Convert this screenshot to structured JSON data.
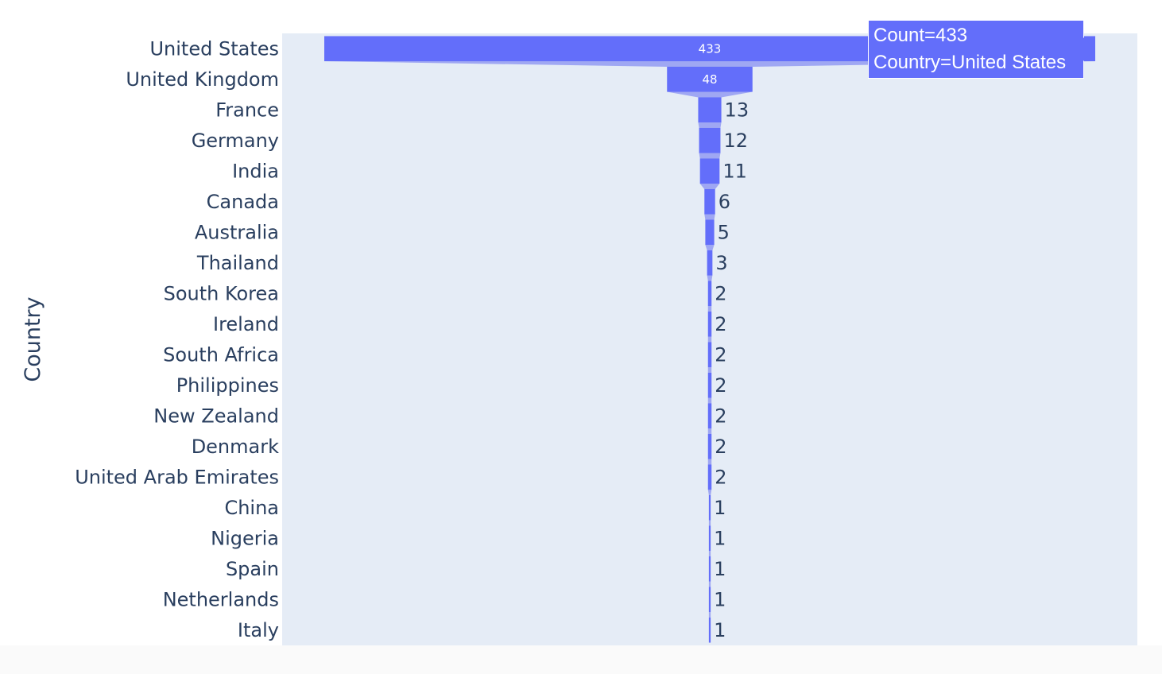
{
  "chart_data": {
    "type": "funnel",
    "ylabel": "Country",
    "categories": [
      "United States",
      "United Kingdom",
      "France",
      "Germany",
      "India",
      "Canada",
      "Australia",
      "Thailand",
      "South Korea",
      "Ireland",
      "South Africa",
      "Philippines",
      "New Zealand",
      "Denmark",
      "United Arab Emirates",
      "China",
      "Nigeria",
      "Spain",
      "Netherlands",
      "Italy"
    ],
    "values": [
      433,
      48,
      13,
      12,
      11,
      6,
      5,
      3,
      2,
      2,
      2,
      2,
      2,
      2,
      2,
      1,
      1,
      1,
      1,
      1
    ],
    "bar_color": "#636efa",
    "connector_color": "#9fa7f3",
    "plot_background": "#e5ecf6"
  },
  "tooltip": {
    "line1": "Count=433",
    "line2": "Country=United States"
  }
}
